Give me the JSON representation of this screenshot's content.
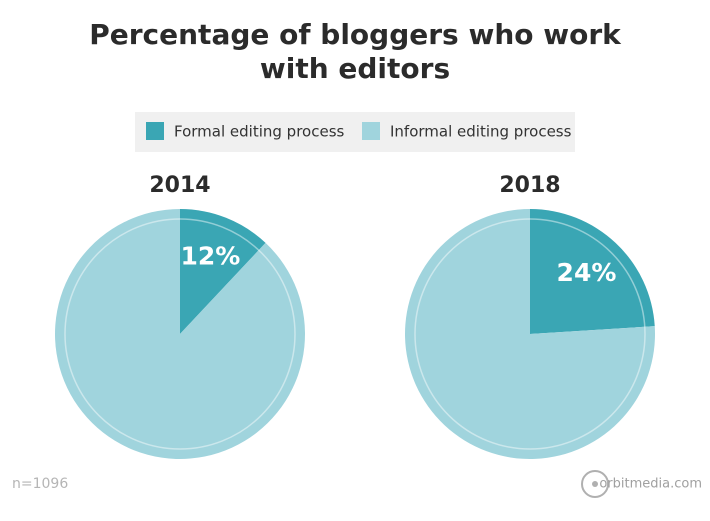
{
  "title": "Percentage of bloggers who work with editors",
  "note": "n=1096",
  "source": "orbitmedia.com",
  "chart_data": [
    {
      "type": "pie",
      "title": "2014",
      "categories": [
        "Formal editing process",
        "Informal editing process"
      ],
      "values": [
        12,
        88
      ],
      "value_labels": [
        "12%",
        null
      ],
      "colors": [
        "#3aa6b4",
        "#a0d4dd"
      ]
    },
    {
      "type": "pie",
      "title": "2018",
      "categories": [
        "Formal editing process",
        "Informal editing process"
      ],
      "values": [
        24,
        76
      ],
      "value_labels": [
        "24%",
        null
      ],
      "colors": [
        "#3aa6b4",
        "#a0d4dd"
      ]
    }
  ]
}
